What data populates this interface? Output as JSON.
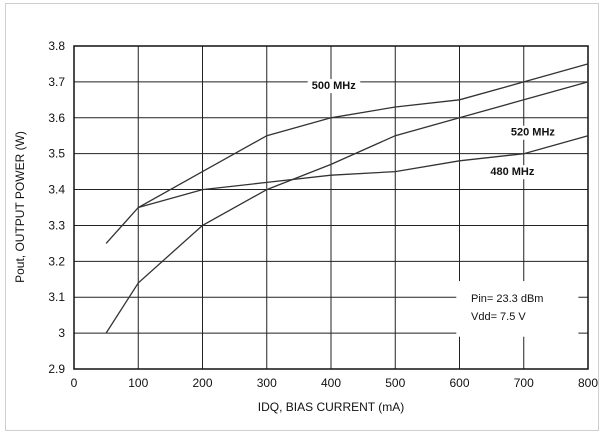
{
  "chart_data": {
    "type": "line",
    "xlabel": "IDQ, BIAS CURRENT (mA)",
    "ylabel": "Pout, OUTPUT POWER (W)",
    "xlim": [
      0,
      800
    ],
    "ylim": [
      2.9,
      3.8
    ],
    "xticks": [
      0,
      100,
      200,
      300,
      400,
      500,
      600,
      700,
      800
    ],
    "yticks": [
      2.9,
      3,
      3.1,
      3.2,
      3.3,
      3.4,
      3.5,
      3.6,
      3.7,
      3.8
    ],
    "ytick_labels": [
      "2.9",
      "3",
      "3.1",
      "3.2",
      "3.3",
      "3.4",
      "3.5",
      "3.6",
      "3.7",
      "3.8"
    ],
    "grid": true,
    "series": [
      {
        "name": "500 MHz",
        "x": [
          50,
          100,
          200,
          300,
          400,
          500,
          600,
          700,
          800
        ],
        "y": [
          3.25,
          3.35,
          3.45,
          3.55,
          3.6,
          3.63,
          3.65,
          3.7,
          3.75
        ]
      },
      {
        "name": "520 MHz",
        "x": [
          50,
          100,
          200,
          300,
          400,
          500,
          600,
          700,
          800
        ],
        "y": [
          3.0,
          3.14,
          3.3,
          3.4,
          3.47,
          3.55,
          3.6,
          3.65,
          3.7
        ]
      },
      {
        "name": "480 MHz",
        "x": [
          100,
          200,
          300,
          400,
          500,
          600,
          700,
          800
        ],
        "y": [
          3.35,
          3.4,
          3.42,
          3.44,
          3.45,
          3.48,
          3.5,
          3.55
        ]
      }
    ],
    "series_label_values": [
      {
        "name": "500 MHz",
        "x": 370,
        "y": 3.68
      },
      {
        "name": "520 MHz",
        "x": 680,
        "y": 3.55
      },
      {
        "name": "480 MHz",
        "x": 648,
        "y": 3.44
      }
    ],
    "annotations": [
      "Pin= 23.3 dBm",
      "Vdd= 7.5 V"
    ],
    "colors": {
      "line": "#333333",
      "grid": "#222222",
      "background": "#ffffff"
    }
  }
}
